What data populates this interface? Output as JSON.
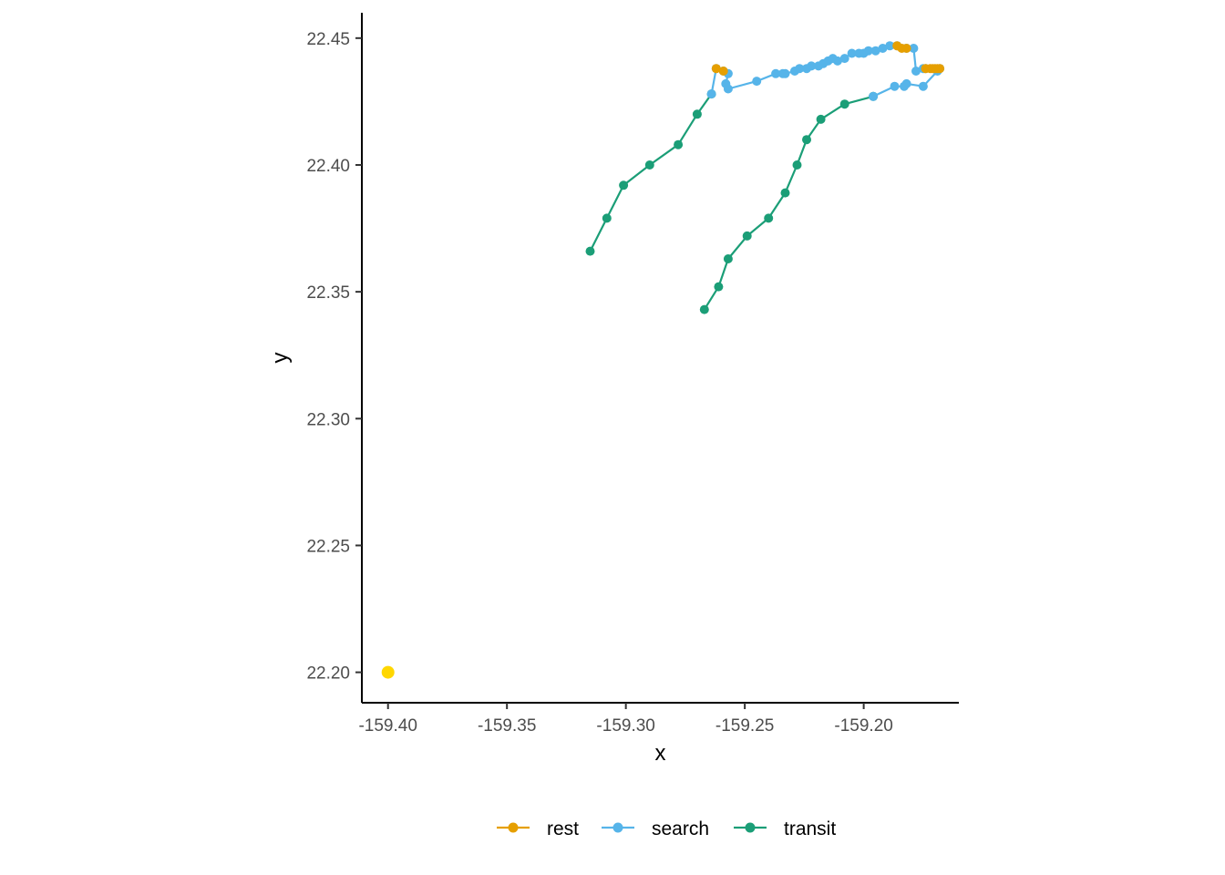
{
  "chart_data": {
    "type": "line",
    "xlabel": "x",
    "ylabel": "y",
    "xlim": [
      -159.411,
      -159.16
    ],
    "ylim": [
      22.188,
      22.46
    ],
    "x_ticks": [
      -159.4,
      -159.35,
      -159.3,
      -159.25,
      -159.2
    ],
    "x_tick_labels": [
      "-159.40",
      "-159.35",
      "-159.30",
      "-159.25",
      "-159.20"
    ],
    "y_ticks": [
      22.2,
      22.25,
      22.3,
      22.35,
      22.4,
      22.45
    ],
    "y_tick_labels": [
      "22.20",
      "22.25",
      "22.30",
      "22.35",
      "22.40",
      "22.45"
    ],
    "grid": false,
    "legend_position": "bottom",
    "colors": {
      "rest": "#e69f00",
      "search": "#56b4e9",
      "transit": "#1b9e77",
      "marker": "#ffd700"
    },
    "legend": [
      "rest",
      "search",
      "transit"
    ],
    "series": [
      {
        "name": "transit",
        "segments": [
          [
            [
              -159.315,
              22.366
            ],
            [
              -159.308,
              22.379
            ],
            [
              -159.301,
              22.392
            ],
            [
              -159.29,
              22.4
            ],
            [
              -159.278,
              22.408
            ],
            [
              -159.27,
              22.42
            ],
            [
              -159.264,
              22.428
            ]
          ],
          [
            [
              -159.196,
              22.427
            ],
            [
              -159.208,
              22.424
            ],
            [
              -159.218,
              22.418
            ],
            [
              -159.224,
              22.41
            ],
            [
              -159.228,
              22.4
            ],
            [
              -159.233,
              22.389
            ],
            [
              -159.24,
              22.379
            ],
            [
              -159.249,
              22.372
            ],
            [
              -159.257,
              22.363
            ],
            [
              -159.261,
              22.352
            ],
            [
              -159.267,
              22.343
            ]
          ]
        ]
      },
      {
        "name": "search",
        "segments": [
          [
            [
              -159.264,
              22.428
            ],
            [
              -159.262,
              22.438
            ],
            [
              -159.259,
              22.437
            ],
            [
              -159.257,
              22.436
            ],
            [
              -159.258,
              22.432
            ],
            [
              -159.257,
              22.43
            ],
            [
              -159.245,
              22.433
            ],
            [
              -159.237,
              22.436
            ],
            [
              -159.234,
              22.436
            ],
            [
              -159.233,
              22.436
            ],
            [
              -159.229,
              22.437
            ],
            [
              -159.227,
              22.438
            ],
            [
              -159.224,
              22.438
            ],
            [
              -159.222,
              22.439
            ],
            [
              -159.219,
              22.439
            ],
            [
              -159.217,
              22.44
            ],
            [
              -159.215,
              22.441
            ],
            [
              -159.213,
              22.442
            ],
            [
              -159.211,
              22.441
            ],
            [
              -159.208,
              22.442
            ],
            [
              -159.205,
              22.444
            ],
            [
              -159.202,
              22.444
            ],
            [
              -159.2,
              22.444
            ],
            [
              -159.198,
              22.445
            ],
            [
              -159.195,
              22.445
            ],
            [
              -159.192,
              22.446
            ],
            [
              -159.189,
              22.447
            ],
            [
              -159.186,
              22.447
            ]
          ],
          [
            [
              -159.182,
              22.446
            ],
            [
              -159.179,
              22.446
            ],
            [
              -159.178,
              22.437
            ],
            [
              -159.175,
              22.438
            ],
            [
              -159.174,
              22.438
            ]
          ],
          [
            [
              -159.168,
              22.438
            ],
            [
              -159.169,
              22.437
            ],
            [
              -159.175,
              22.431
            ],
            [
              -159.182,
              22.432
            ],
            [
              -159.183,
              22.431
            ],
            [
              -159.187,
              22.431
            ],
            [
              -159.196,
              22.427
            ]
          ]
        ]
      },
      {
        "name": "rest",
        "segments": [
          [
            [
              -159.262,
              22.438
            ],
            [
              -159.259,
              22.437
            ]
          ],
          [
            [
              -159.186,
              22.447
            ],
            [
              -159.184,
              22.446
            ],
            [
              -159.182,
              22.446
            ]
          ],
          [
            [
              -159.174,
              22.438
            ],
            [
              -159.172,
              22.438
            ],
            [
              -159.171,
              22.438
            ],
            [
              -159.17,
              22.438
            ],
            [
              -159.169,
              22.438
            ],
            [
              -159.168,
              22.438
            ]
          ]
        ]
      }
    ],
    "highlight_point": {
      "x": -159.4,
      "y": 22.2
    }
  }
}
